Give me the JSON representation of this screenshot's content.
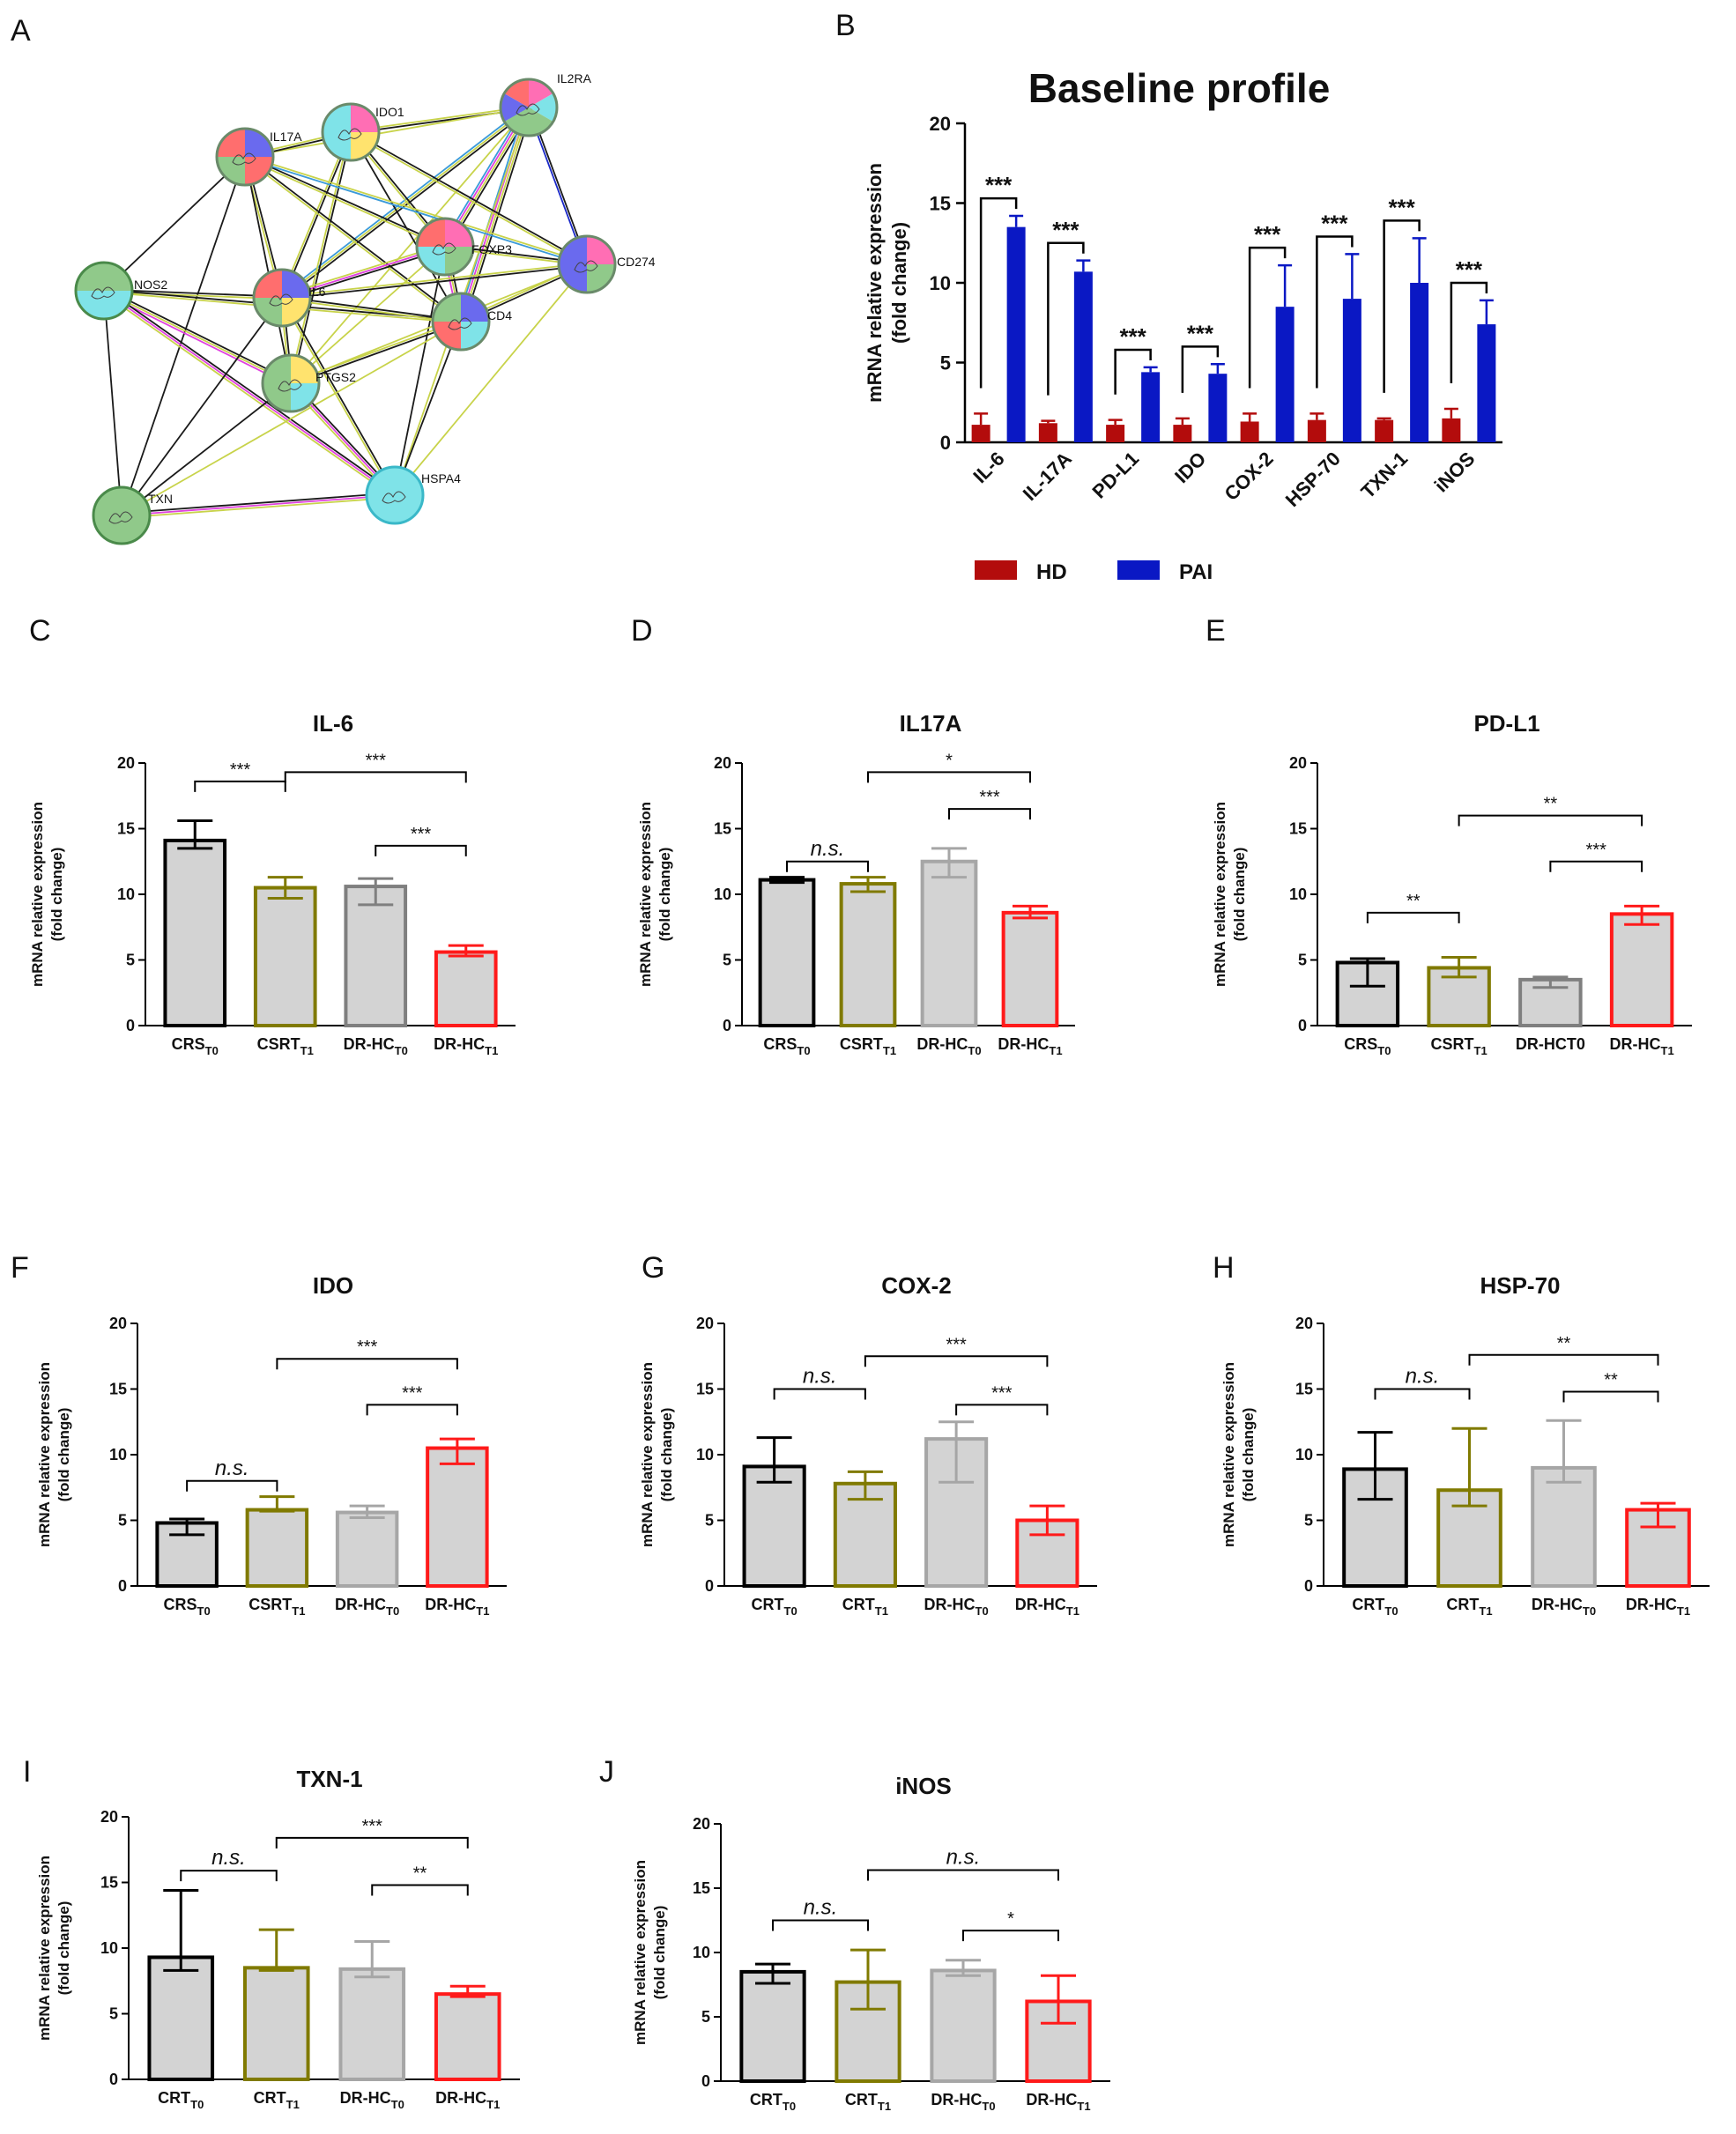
{
  "figure": {
    "panel_letters": [
      "A",
      "B",
      "C",
      "D",
      "E",
      "F",
      "G",
      "H",
      "I",
      "J"
    ]
  },
  "network": {
    "panel": "A",
    "nodes": [
      "IL2RA",
      "IDO1",
      "IL17A",
      "FOXP3",
      "CD274",
      "NOS2",
      "IL6",
      "CD4",
      "PTGS2",
      "TXN",
      "HSPA4"
    ]
  },
  "chart_data": [
    {
      "panel": "B",
      "type": "bar",
      "title": "Baseline profile",
      "ylabel": "mRNA relative expression\n(fold change)",
      "xlabel": "",
      "ylim": [
        0,
        20
      ],
      "yticks": [
        "0",
        "5",
        "10",
        "15",
        "20"
      ],
      "categories": [
        "IL-6",
        "IL-17A",
        "PD-L1",
        "IDO",
        "COX-2",
        "HSP-70",
        "TXN-1",
        "iNOS"
      ],
      "series": [
        {
          "name": "HD",
          "color": "#b30c0c",
          "values": [
            1.1,
            1.2,
            1.1,
            1.1,
            1.3,
            1.4,
            1.4,
            1.5
          ],
          "errors": [
            0.7,
            0.15,
            0.3,
            0.4,
            0.5,
            0.4,
            0.1,
            0.6
          ]
        },
        {
          "name": "PAI",
          "color": "#0a18c4",
          "values": [
            13.5,
            10.7,
            4.4,
            4.3,
            8.5,
            9.0,
            10.0,
            7.4
          ],
          "errors": [
            0.7,
            0.7,
            0.3,
            0.6,
            2.6,
            2.8,
            2.8,
            1.5
          ]
        }
      ],
      "significance": [
        {
          "from": 0,
          "to": 1,
          "label": "***"
        },
        {
          "from": 0,
          "to": 1,
          "label": "***"
        },
        {
          "from": 0,
          "to": 1,
          "label": "***"
        },
        {
          "from": 0,
          "to": 1,
          "label": "***"
        },
        {
          "from": 0,
          "to": 1,
          "label": "***"
        },
        {
          "from": 0,
          "to": 1,
          "label": "***"
        },
        {
          "from": 0,
          "to": 1,
          "label": "***"
        },
        {
          "from": 0,
          "to": 1,
          "label": "***"
        }
      ],
      "legend": [
        "HD",
        "PAI"
      ]
    },
    {
      "panel": "C",
      "type": "bar",
      "title": "IL-6",
      "ylabel": "mRNA relative expression\n(fold change)",
      "ylim": [
        0,
        20
      ],
      "yticks": [
        "0",
        "5",
        "10",
        "15",
        "20"
      ],
      "categories": [
        {
          "base": "CRS",
          "sub": "T0"
        },
        {
          "base": "CSRT",
          "sub": "T1"
        },
        {
          "base": "DR-HC",
          "sub": "T0"
        },
        {
          "base": "DR-HC",
          "sub": "T1"
        }
      ],
      "values": [
        14.1,
        10.5,
        10.6,
        5.6
      ],
      "err_up": [
        1.5,
        0.8,
        0.6,
        0.5
      ],
      "err_down": [
        0.6,
        0.8,
        1.4,
        0.3
      ],
      "colors": [
        "#000000",
        "#807a00",
        "#7f7f7f",
        "#ff1a1a"
      ],
      "significance": [
        {
          "from": 0,
          "to": 1,
          "label": "***",
          "level": 18.6
        },
        {
          "from": 1,
          "to": 3,
          "label": "***",
          "level": 19.3
        },
        {
          "from": 2,
          "to": 3,
          "label": "***",
          "level": 13.7
        }
      ]
    },
    {
      "panel": "D",
      "type": "bar",
      "title": "IL17A",
      "ylabel": "mRNA relative expression\n(fold change)",
      "ylim": [
        0,
        20
      ],
      "yticks": [
        "0",
        "5",
        "10",
        "15",
        "20"
      ],
      "categories": [
        {
          "base": "CRS",
          "sub": "T0"
        },
        {
          "base": "CSRT",
          "sub": "T1"
        },
        {
          "base": "DR-HC",
          "sub": "T0"
        },
        {
          "base": "DR-HC",
          "sub": "T1"
        }
      ],
      "values": [
        11.1,
        10.8,
        12.5,
        8.6
      ],
      "err_up": [
        0.2,
        0.5,
        1.0,
        0.5
      ],
      "err_down": [
        0.2,
        0.6,
        1.2,
        0.4
      ],
      "colors": [
        "#000000",
        "#807a00",
        "#a6a6a6",
        "#ff1a1a"
      ],
      "significance": [
        {
          "from": 0,
          "to": 1,
          "label": "n.s.",
          "level": 12.5,
          "italic": true
        },
        {
          "from": 1,
          "to": 3,
          "label": "*",
          "level": 19.3
        },
        {
          "from": 2,
          "to": 3,
          "label": "***",
          "level": 16.5
        }
      ]
    },
    {
      "panel": "E",
      "type": "bar",
      "title": "PD-L1",
      "ylabel": "mRNA relative expression\n(fold change)",
      "ylim": [
        0,
        20
      ],
      "yticks": [
        "0",
        "5",
        "10",
        "15",
        "20"
      ],
      "categories": [
        {
          "base": "CRS",
          "sub": "T0"
        },
        {
          "base": "CSRT",
          "sub": "T1"
        },
        {
          "base": "DR-HCT0",
          "sub": ""
        },
        {
          "base": "DR-HC",
          "sub": "T1"
        }
      ],
      "values": [
        4.8,
        4.4,
        3.5,
        8.5
      ],
      "err_up": [
        0.3,
        0.8,
        0.2,
        0.6
      ],
      "err_down": [
        1.8,
        0.7,
        0.6,
        0.8
      ],
      "colors": [
        "#000000",
        "#807a00",
        "#7f7f7f",
        "#ff1a1a"
      ],
      "significance": [
        {
          "from": 0,
          "to": 1,
          "label": "**",
          "level": 8.6
        },
        {
          "from": 1,
          "to": 3,
          "label": "**",
          "level": 16.0
        },
        {
          "from": 2,
          "to": 3,
          "label": "***",
          "level": 12.5
        }
      ]
    },
    {
      "panel": "F",
      "type": "bar",
      "title": "IDO",
      "ylabel": "mRNA relative expression\n(fold change)",
      "ylim": [
        0,
        20
      ],
      "yticks": [
        "0",
        "5",
        "10",
        "15",
        "20"
      ],
      "categories": [
        {
          "base": "CRS",
          "sub": "T0"
        },
        {
          "base": "CSRT",
          "sub": "T1"
        },
        {
          "base": "DR-HC",
          "sub": "T0"
        },
        {
          "base": "DR-HC",
          "sub": "T1"
        }
      ],
      "values": [
        4.8,
        5.8,
        5.6,
        10.5
      ],
      "err_up": [
        0.3,
        1.0,
        0.5,
        0.7
      ],
      "err_down": [
        0.9,
        0.1,
        0.4,
        1.2
      ],
      "colors": [
        "#000000",
        "#807a00",
        "#a6a6a6",
        "#ff1a1a"
      ],
      "significance": [
        {
          "from": 0,
          "to": 1,
          "label": "n.s.",
          "level": 8.0,
          "italic": true
        },
        {
          "from": 1,
          "to": 3,
          "label": "***",
          "level": 17.3
        },
        {
          "from": 2,
          "to": 3,
          "label": "***",
          "level": 13.8
        }
      ]
    },
    {
      "panel": "G",
      "type": "bar",
      "title": "COX-2",
      "ylabel": "mRNA relative expression\n(fold change)",
      "ylim": [
        0,
        20
      ],
      "yticks": [
        "0",
        "5",
        "10",
        "15",
        "20"
      ],
      "categories": [
        {
          "base": "CRT",
          "sub": "T0"
        },
        {
          "base": "CRT",
          "sub": "T1"
        },
        {
          "base": "DR-HC",
          "sub": "T0"
        },
        {
          "base": "DR-HC",
          "sub": "T1"
        }
      ],
      "values": [
        9.1,
        7.8,
        11.2,
        5.0
      ],
      "err_up": [
        2.2,
        0.9,
        1.3,
        1.1
      ],
      "err_down": [
        1.2,
        1.2,
        3.3,
        1.1
      ],
      "colors": [
        "#000000",
        "#807a00",
        "#a6a6a6",
        "#ff1a1a"
      ],
      "significance": [
        {
          "from": 0,
          "to": 1,
          "label": "n.s.",
          "level": 15.0,
          "italic": true
        },
        {
          "from": 1,
          "to": 3,
          "label": "***",
          "level": 17.5
        },
        {
          "from": 2,
          "to": 3,
          "label": "***",
          "level": 13.8
        }
      ]
    },
    {
      "panel": "H",
      "type": "bar",
      "title": "HSP-70",
      "ylabel": "mRNA relative expression\n(fold change)",
      "ylim": [
        0,
        20
      ],
      "yticks": [
        "0",
        "5",
        "10",
        "15",
        "20"
      ],
      "categories": [
        {
          "base": "CRT",
          "sub": "T0"
        },
        {
          "base": "CRT",
          "sub": "T1"
        },
        {
          "base": "DR-HC",
          "sub": "T0"
        },
        {
          "base": "DR-HC",
          "sub": "T1"
        }
      ],
      "values": [
        8.9,
        7.3,
        9.0,
        5.8
      ],
      "err_up": [
        2.8,
        4.7,
        3.6,
        0.5
      ],
      "err_down": [
        2.3,
        1.2,
        1.1,
        1.3
      ],
      "colors": [
        "#000000",
        "#807a00",
        "#a6a6a6",
        "#ff1a1a"
      ],
      "significance": [
        {
          "from": 0,
          "to": 1,
          "label": "n.s.",
          "level": 15.0,
          "italic": true
        },
        {
          "from": 1,
          "to": 3,
          "label": "**",
          "level": 17.6
        },
        {
          "from": 2,
          "to": 3,
          "label": "**",
          "level": 14.8
        }
      ]
    },
    {
      "panel": "I",
      "type": "bar",
      "title": "TXN-1",
      "ylabel": "mRNA relative expression\n(fold change)",
      "ylim": [
        0,
        20
      ],
      "yticks": [
        "0",
        "5",
        "10",
        "15",
        "20"
      ],
      "categories": [
        {
          "base": "CRT",
          "sub": "T0"
        },
        {
          "base": "CRT",
          "sub": "T1"
        },
        {
          "base": "DR-HC",
          "sub": "T0"
        },
        {
          "base": "DR-HC",
          "sub": "T1"
        }
      ],
      "values": [
        9.3,
        8.5,
        8.4,
        6.5
      ],
      "err_up": [
        5.1,
        2.9,
        2.1,
        0.6
      ],
      "err_down": [
        1.0,
        0.2,
        0.6,
        0.2
      ],
      "colors": [
        "#000000",
        "#807a00",
        "#a6a6a6",
        "#ff1a1a"
      ],
      "significance": [
        {
          "from": 0,
          "to": 1,
          "label": "n.s.",
          "level": 15.9,
          "italic": true
        },
        {
          "from": 1,
          "to": 3,
          "label": "***",
          "level": 18.4
        },
        {
          "from": 2,
          "to": 3,
          "label": "**",
          "level": 14.8
        }
      ]
    },
    {
      "panel": "J",
      "type": "bar",
      "title": "iNOS",
      "ylabel": "mRNA relative expression\n(fold change)",
      "ylim": [
        0,
        20
      ],
      "yticks": [
        "0",
        "5",
        "10",
        "15",
        "20"
      ],
      "categories": [
        {
          "base": "CRT",
          "sub": "T0"
        },
        {
          "base": "CRT",
          "sub": "T1"
        },
        {
          "base": "DR-HC",
          "sub": "T0"
        },
        {
          "base": "DR-HC",
          "sub": "T1"
        }
      ],
      "values": [
        8.5,
        7.7,
        8.6,
        6.2
      ],
      "err_up": [
        0.6,
        2.5,
        0.8,
        2.0
      ],
      "err_down": [
        0.9,
        2.1,
        0.4,
        1.7
      ],
      "colors": [
        "#000000",
        "#807a00",
        "#a6a6a6",
        "#ff1a1a"
      ],
      "significance": [
        {
          "from": 0,
          "to": 1,
          "label": "n.s.",
          "level": 12.5,
          "italic": true
        },
        {
          "from": 1,
          "to": 3,
          "label": "n.s.",
          "level": 16.4,
          "italic": true
        },
        {
          "from": 2,
          "to": 3,
          "label": "*",
          "level": 11.7
        }
      ]
    }
  ]
}
